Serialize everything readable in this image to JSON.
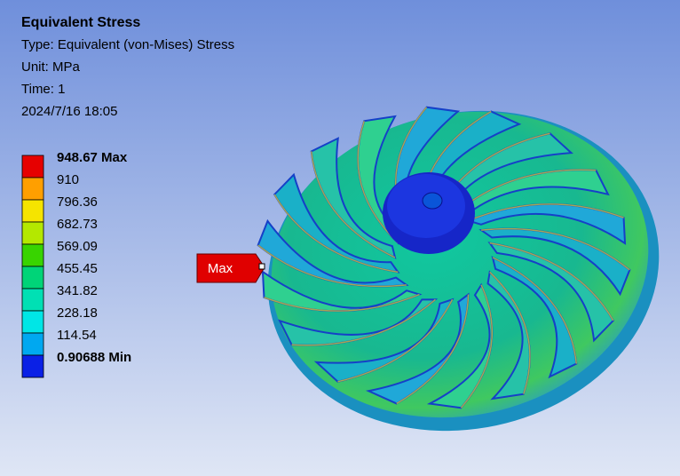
{
  "header": {
    "title": "Equivalent Stress",
    "type": "Type: Equivalent (von-Mises) Stress",
    "unit": "Unit: MPa",
    "time": "Time: 1",
    "date": "2024/7/16 18:05"
  },
  "legend": {
    "levels": [
      {
        "label": "948.67 Max",
        "color": "#e60000"
      },
      {
        "label": "910",
        "color": "#ff9f00"
      },
      {
        "label": "796.36",
        "color": "#f5e400"
      },
      {
        "label": "682.73",
        "color": "#b4e800"
      },
      {
        "label": "569.09",
        "color": "#38d400"
      },
      {
        "label": "455.45",
        "color": "#00d478"
      },
      {
        "label": "341.82",
        "color": "#00e0b4"
      },
      {
        "label": "228.18",
        "color": "#00e6e6"
      },
      {
        "label": "114.54",
        "color": "#00a8f0"
      },
      {
        "label": "0.90688 Min",
        "color": "#0a20e6"
      }
    ]
  },
  "probe": {
    "label": "Max"
  }
}
